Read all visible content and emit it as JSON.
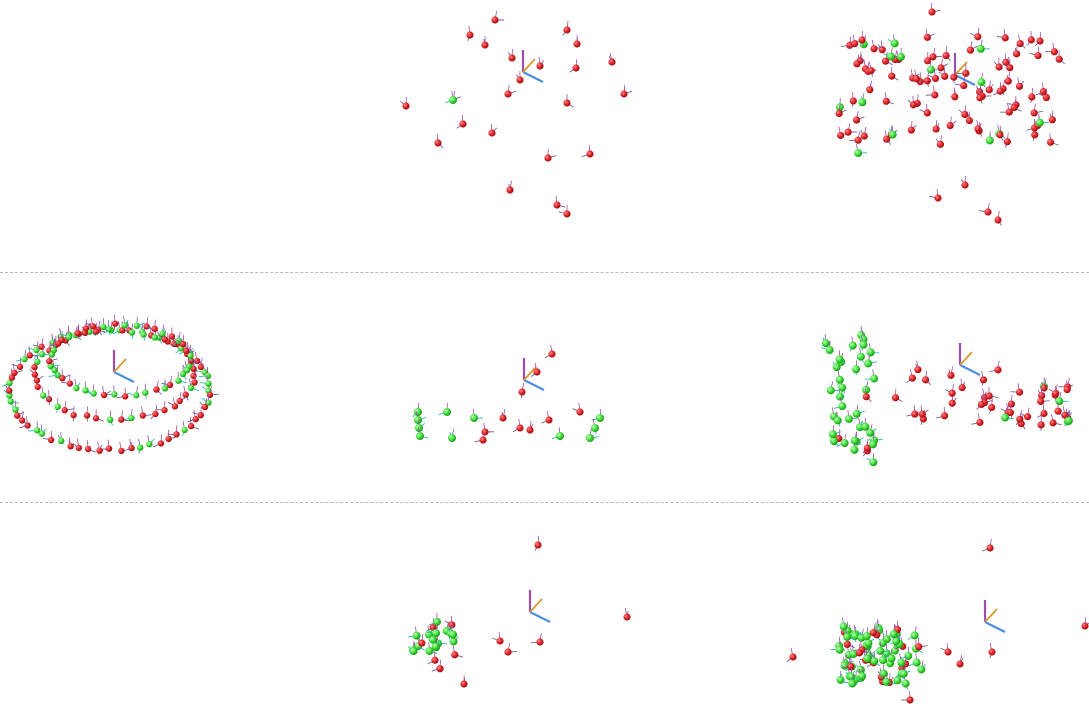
{
  "colors": {
    "background": "#ffffff",
    "divider": "#b9b9b9",
    "sphere_red": "#e0262b",
    "sphere_green": "#3fe03a",
    "axis_x": "#4a90e2",
    "axis_y": "#d99a2b",
    "axis_z": "#9b4fb0",
    "spike": "#7a5a9a"
  },
  "grid": {
    "rows": 3,
    "cols": 3
  },
  "panels": [
    {
      "row": 0,
      "col": 0,
      "empty": true
    },
    {
      "row": 0,
      "col": 1,
      "pattern": "sparse-red"
    },
    {
      "row": 0,
      "col": 2,
      "pattern": "dense-red"
    },
    {
      "row": 1,
      "col": 0,
      "pattern": "ellipse-mixed"
    },
    {
      "row": 1,
      "col": 1,
      "pattern": "sparse-mixed"
    },
    {
      "row": 1,
      "col": 2,
      "pattern": "mixed-clusters"
    },
    {
      "row": 2,
      "col": 0,
      "empty": true
    },
    {
      "row": 2,
      "col": 1,
      "pattern": "green-cluster-left"
    },
    {
      "row": 2,
      "col": 2,
      "pattern": "green-blob"
    }
  ]
}
